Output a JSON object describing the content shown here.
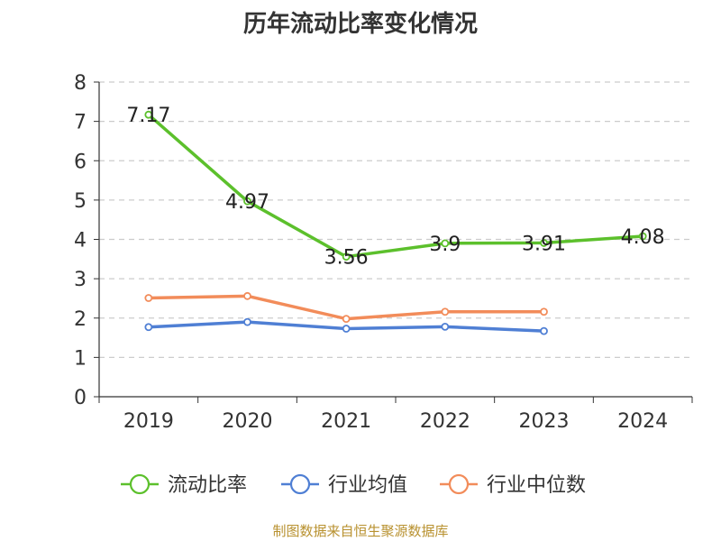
{
  "chart_data": {
    "type": "line",
    "title": "历年流动比率变化情况",
    "categories": [
      "2019",
      "2020",
      "2021",
      "2022",
      "2023",
      "2024"
    ],
    "ylim": [
      0,
      8
    ],
    "yticks": [
      "0",
      "1",
      "2",
      "3",
      "4",
      "5",
      "6",
      "7",
      "8"
    ],
    "grid": true,
    "legend_position": "bottom",
    "series": [
      {
        "name": "流动比率",
        "color": "#5cc02c",
        "values": [
          7.17,
          4.97,
          3.56,
          3.9,
          3.91,
          4.08
        ],
        "labels": [
          "7.17",
          "4.97",
          "3.56",
          "3.9",
          "3.91",
          "4.08"
        ]
      },
      {
        "name": "行业均值",
        "color": "#4f7fd4",
        "values": [
          1.77,
          1.9,
          1.73,
          1.78,
          1.67,
          null
        ]
      },
      {
        "name": "行业中位数",
        "color": "#f28c5a",
        "values": [
          2.51,
          2.56,
          1.98,
          2.16,
          2.16,
          null
        ]
      }
    ],
    "source": "制图数据来自恒生聚源数据库"
  }
}
